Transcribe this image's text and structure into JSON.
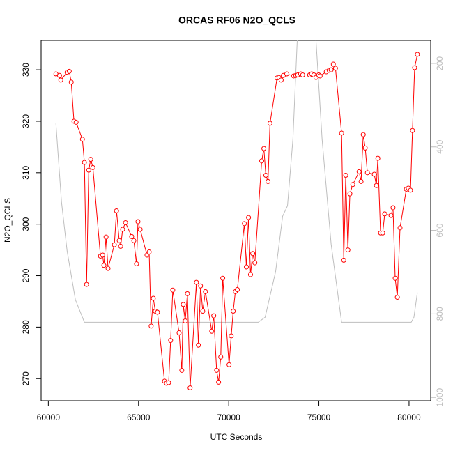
{
  "chart_data": {
    "type": "line",
    "title": "ORCAS RF06 N2O_QCLS",
    "x_label": "UTC Seconds",
    "y_label": "N2O_QCLS",
    "xlim": [
      59600,
      81200
    ],
    "xticks": [
      60000,
      65000,
      70000,
      75000,
      80000
    ],
    "ylim": [
      265.7,
      335.7
    ],
    "yticks": [
      270,
      280,
      290,
      300,
      310,
      320,
      330
    ],
    "y2lim": [
      1008,
      145
    ],
    "y2ticks": [
      200,
      400,
      600,
      800,
      1000
    ],
    "series": [
      {
        "color": "#ff0000",
        "markers": true,
        "x": [
          60420,
          60620,
          60690,
          61040,
          61160,
          61270,
          61420,
          61540,
          61890,
          62000,
          62120,
          62240,
          62350,
          62470,
          62890,
          63010,
          63080,
          63200,
          63310,
          63660,
          63780,
          63930,
          64010,
          64120,
          64280,
          64620,
          64740,
          64890,
          64970,
          65090,
          65470,
          65590,
          65700,
          65820,
          65930,
          66050,
          66440,
          66550,
          66670,
          66780,
          66900,
          67250,
          67400,
          67480,
          67590,
          67710,
          67860,
          68210,
          68320,
          68440,
          68560,
          68710,
          69060,
          69170,
          69330,
          69440,
          69560,
          69670,
          70020,
          70140,
          70250,
          70370,
          70480,
          70870,
          70980,
          71100,
          71210,
          71330,
          71450,
          71830,
          71950,
          72060,
          72180,
          72290,
          72680,
          72790,
          72910,
          73030,
          73220,
          73600,
          73720,
          73830,
          73990,
          74100,
          74490,
          74600,
          74720,
          74840,
          74990,
          75070,
          75410,
          75570,
          75680,
          75800,
          75920,
          76260,
          76380,
          76490,
          76610,
          76720,
          76880,
          77230,
          77340,
          77460,
          77570,
          77690,
          78070,
          78190,
          78270,
          78420,
          78540,
          78650,
          79000,
          79110,
          79230,
          79350,
          79500,
          79850,
          79960,
          80080,
          80190,
          80310,
          80460
        ],
        "values": [
          329.2,
          328.9,
          328,
          329.5,
          329.7,
          327.6,
          320,
          319.8,
          316.5,
          312,
          288.3,
          310.5,
          312.6,
          311,
          293.8,
          294,
          292,
          297.5,
          291.4,
          296,
          302.6,
          296.8,
          295.7,
          299,
          300.3,
          297.6,
          296.8,
          292.3,
          300.5,
          299,
          294,
          294.6,
          280.2,
          285.6,
          283.1,
          282.9,
          269.5,
          269.1,
          269.2,
          277.4,
          287.2,
          278.9,
          271.6,
          284.4,
          281.2,
          286.5,
          268.2,
          288.7,
          276.5,
          288,
          283.1,
          286.9,
          279.2,
          282.2,
          271.6,
          269.3,
          274.2,
          289.5,
          272.7,
          278.3,
          283.1,
          286.9,
          287.3,
          300.1,
          291.7,
          301.3,
          290.2,
          294.3,
          292.5,
          312.3,
          314.7,
          309.5,
          308.3,
          319.6,
          328.4,
          328.5,
          328,
          328.9,
          329.2,
          328.8,
          328.9,
          329,
          329.2,
          329,
          329,
          329.2,
          329,
          328.5,
          329,
          328.8,
          329.6,
          329.9,
          330,
          331.1,
          330.3,
          317.7,
          293,
          309.5,
          295,
          305.9,
          307.7,
          310.2,
          308.3,
          317.4,
          314.8,
          310,
          309.7,
          307.5,
          312.8,
          298.3,
          298.3,
          302,
          301.7,
          303.2,
          289.5,
          285.8,
          299.3,
          306.8,
          307,
          306.6,
          318.2,
          330.4,
          333
        ]
      },
      {
        "color": "#bebebe",
        "markers": false,
        "axis": "y2",
        "x": [
          60420,
          60730,
          61040,
          61500,
          62000,
          71640,
          72020,
          72600,
          72990,
          73260,
          73560,
          73800,
          null,
          74840,
          75180,
          75680,
          76260,
          80120,
          80270,
          80460
        ],
        "values": [
          344,
          532,
          649,
          766,
          820,
          820,
          808,
          699,
          566,
          541,
          382,
          145,
          null,
          145,
          382,
          633,
          820,
          820,
          808,
          749
        ]
      }
    ]
  }
}
